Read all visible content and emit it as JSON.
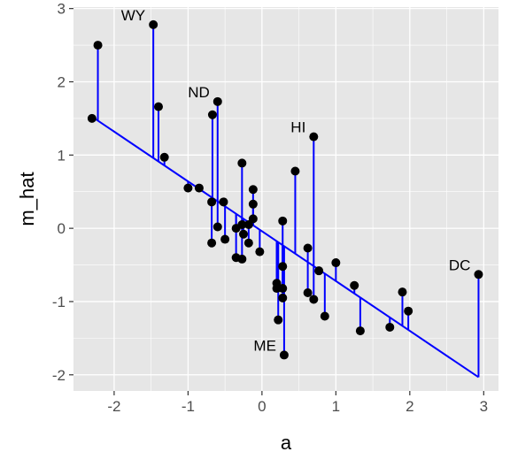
{
  "chart_data": {
    "type": "scatter",
    "title": "",
    "xlabel": "a",
    "ylabel": "m_hat",
    "xlim": [
      -2.55,
      3.2
    ],
    "ylim": [
      -2.22,
      3.02
    ],
    "x_ticks": [
      -2,
      -1,
      0,
      1,
      2,
      3
    ],
    "y_ticks": [
      -2,
      -1,
      0,
      1,
      2,
      3
    ],
    "x_tick_labels": [
      "-2",
      "-1",
      "0",
      "1",
      "2",
      "3"
    ],
    "y_tick_labels": [
      "-2",
      "-1",
      "0",
      "1",
      "2",
      "3"
    ],
    "grid": true,
    "background_color": "#e6e6e6",
    "grid_color": "#ffffff",
    "point_color": "#000000",
    "fit_line": {
      "intercept": -0.04,
      "slope": -0.68,
      "color": "#0000ff"
    },
    "points": [
      {
        "x": -2.3,
        "y": 1.5
      },
      {
        "x": -2.22,
        "y": 2.5
      },
      {
        "x": -1.47,
        "y": 2.78,
        "label": "WY"
      },
      {
        "x": -1.4,
        "y": 1.66
      },
      {
        "x": -1.32,
        "y": 0.97
      },
      {
        "x": -1.0,
        "y": 0.55
      },
      {
        "x": -0.85,
        "y": 0.55
      },
      {
        "x": -0.67,
        "y": 1.55
      },
      {
        "x": -0.6,
        "y": 1.73,
        "label": "ND"
      },
      {
        "x": -0.68,
        "y": 0.36
      },
      {
        "x": -0.68,
        "y": -0.2
      },
      {
        "x": -0.6,
        "y": 0.02
      },
      {
        "x": -0.52,
        "y": 0.36
      },
      {
        "x": -0.5,
        "y": -0.15
      },
      {
        "x": -0.35,
        "y": 0.0
      },
      {
        "x": -0.35,
        "y": -0.4
      },
      {
        "x": -0.27,
        "y": 0.89
      },
      {
        "x": -0.27,
        "y": -0.42
      },
      {
        "x": -0.27,
        "y": 0.05
      },
      {
        "x": -0.25,
        "y": -0.08
      },
      {
        "x": -0.18,
        "y": -0.2
      },
      {
        "x": -0.18,
        "y": 0.05
      },
      {
        "x": -0.12,
        "y": 0.53
      },
      {
        "x": -0.12,
        "y": 0.33
      },
      {
        "x": -0.12,
        "y": 0.13
      },
      {
        "x": -0.03,
        "y": -0.32
      },
      {
        "x": 0.2,
        "y": -0.75
      },
      {
        "x": 0.2,
        "y": -0.82
      },
      {
        "x": 0.22,
        "y": -1.25
      },
      {
        "x": 0.28,
        "y": 0.1
      },
      {
        "x": 0.28,
        "y": -0.52
      },
      {
        "x": 0.28,
        "y": -0.82
      },
      {
        "x": 0.28,
        "y": -0.95
      },
      {
        "x": 0.3,
        "y": -1.73,
        "label": "ME"
      },
      {
        "x": 0.45,
        "y": 0.78
      },
      {
        "x": 0.62,
        "y": -0.27
      },
      {
        "x": 0.62,
        "y": -0.88
      },
      {
        "x": 0.7,
        "y": 1.25,
        "label": "HI"
      },
      {
        "x": 0.7,
        "y": -0.97
      },
      {
        "x": 0.77,
        "y": -0.58
      },
      {
        "x": 0.85,
        "y": -1.2
      },
      {
        "x": 1.0,
        "y": -0.47
      },
      {
        "x": 1.25,
        "y": -0.78
      },
      {
        "x": 1.33,
        "y": -1.4
      },
      {
        "x": 1.73,
        "y": -1.35
      },
      {
        "x": 1.9,
        "y": -0.87
      },
      {
        "x": 1.98,
        "y": -1.13
      },
      {
        "x": 2.93,
        "y": -0.63,
        "label": "DC"
      }
    ]
  }
}
